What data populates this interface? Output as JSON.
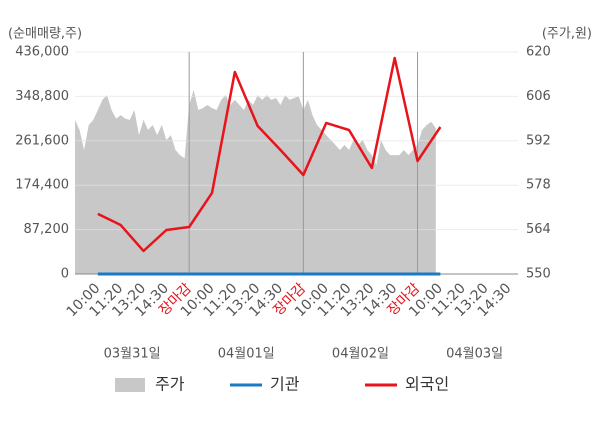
{
  "chart_data": {
    "type": "stock-flow",
    "y_title": "(순매매량,주)",
    "y2_title": "(주가,원)",
    "xlim": [
      0,
      19.4
    ],
    "ylim": [
      0,
      436000
    ],
    "yticks": [
      0,
      {
        "value": 87200,
        "label": "87,200"
      },
      {
        "value": 174400,
        "label": "174,400"
      },
      {
        "value": 261600,
        "label": "261,600"
      },
      {
        "value": 348800,
        "label": "348,800"
      },
      {
        "value": 436000,
        "label": "436,000"
      }
    ],
    "y2lim": [
      550,
      620
    ],
    "y2ticks": [
      550,
      564,
      578,
      592,
      606,
      620
    ],
    "xticks": [
      {
        "value": 1,
        "label": "10:00"
      },
      {
        "value": 2,
        "label": "11:20"
      },
      {
        "value": 3,
        "label": "13:20"
      },
      {
        "value": 4,
        "label": "14:30"
      },
      {
        "value": 5,
        "label": "장마감",
        "color": "#e8131b",
        "grid": true
      },
      {
        "value": 6,
        "label": "10:00"
      },
      {
        "value": 7,
        "label": "11:20"
      },
      {
        "value": 8,
        "label": "13:20"
      },
      {
        "value": 9,
        "label": "14:30"
      },
      {
        "value": 10,
        "label": "장마감",
        "color": "#e8131b",
        "grid": true
      },
      {
        "value": 11,
        "label": "10:00"
      },
      {
        "value": 12,
        "label": "11:20"
      },
      {
        "value": 13,
        "label": "13:20"
      },
      {
        "value": 14,
        "label": "14:30"
      },
      {
        "value": 15,
        "label": "장마감",
        "color": "#e8131b",
        "grid": true
      },
      {
        "value": 16,
        "label": "10:00"
      },
      {
        "value": 17,
        "label": "11:20"
      },
      {
        "value": 18,
        "label": "13:20"
      },
      {
        "value": 19,
        "label": "14:30"
      }
    ],
    "date_labels": [
      {
        "value": 2.5,
        "label": "03월31일"
      },
      {
        "value": 7.5,
        "label": "04월01일"
      },
      {
        "value": 12.5,
        "label": "04월02일"
      },
      {
        "value": 17.5,
        "label": "04월03일"
      }
    ],
    "series": [
      {
        "name": "주가",
        "kind": "area",
        "axis": "y2",
        "color": "#c8c8c8",
        "x": [
          0,
          0.2,
          0.4,
          0.6,
          0.8,
          1,
          1.2,
          1.4,
          1.6,
          1.8,
          2,
          2.2,
          2.4,
          2.6,
          2.8,
          3,
          3.2,
          3.4,
          3.6,
          3.8,
          4,
          4.2,
          4.4,
          4.6,
          4.8,
          5,
          5.2,
          5.4,
          5.6,
          5.8,
          6,
          6.2,
          6.4,
          6.6,
          6.8,
          7,
          7.2,
          7.4,
          7.6,
          7.8,
          8,
          8.2,
          8.4,
          8.6,
          8.8,
          9,
          9.2,
          9.4,
          9.6,
          9.8,
          10,
          10.2,
          10.4,
          10.6,
          10.8,
          11,
          11.2,
          11.4,
          11.6,
          11.8,
          12,
          12.2,
          12.4,
          12.6,
          12.8,
          13,
          13.2,
          13.4,
          13.6,
          13.8,
          14,
          14.2,
          14.4,
          14.6,
          14.8,
          15,
          15.2,
          15.4,
          15.6,
          15.8
        ],
        "values": [
          598.6,
          595.4,
          589.1,
          597.0,
          598.6,
          601.7,
          604.9,
          606.4,
          601.7,
          599.0,
          600.1,
          599.0,
          598.6,
          601.7,
          593.8,
          598.6,
          595.4,
          597.0,
          593.8,
          597.0,
          592.3,
          593.8,
          589.1,
          587.5,
          586.5,
          603.3,
          608.0,
          601.7,
          602.3,
          603.3,
          602.3,
          601.7,
          604.9,
          606.4,
          603.3,
          604.9,
          603.3,
          601.7,
          604.9,
          603.3,
          606.4,
          604.9,
          606.4,
          604.9,
          605.5,
          603.3,
          606.4,
          604.9,
          605.5,
          606.0,
          601.7,
          604.9,
          600.1,
          597.0,
          595.4,
          593.8,
          592.3,
          590.7,
          589.1,
          590.7,
          589.1,
          592.3,
          590.7,
          592.3,
          589.1,
          587.5,
          584.4,
          592.3,
          589.1,
          587.5,
          587.5,
          587.5,
          589.1,
          587.5,
          589.1,
          590.7,
          595.4,
          597.0,
          598.0,
          596.0
        ]
      },
      {
        "name": "기관",
        "kind": "line",
        "color": "#1a7ac4",
        "x": [
          1,
          2,
          3,
          4,
          5,
          6,
          7,
          8,
          9,
          10,
          11,
          12,
          13,
          14,
          15,
          16
        ],
        "values": [
          0,
          0,
          0,
          0,
          0,
          0,
          0,
          0,
          0,
          0,
          0,
          0,
          0,
          0,
          0,
          0
        ]
      },
      {
        "name": "외국인",
        "kind": "line",
        "color": "#e8131b",
        "x": [
          1,
          2,
          3,
          4,
          5,
          6,
          7,
          8,
          9,
          10,
          11,
          12,
          13,
          14,
          15,
          16
        ],
        "values": [
          118000,
          96200,
          45200,
          86400,
          92300,
          159100,
          396700,
          290700,
          243500,
          194400,
          296600,
          282800,
          208200,
          424200,
          221900,
          288700
        ]
      }
    ],
    "grid": true
  }
}
